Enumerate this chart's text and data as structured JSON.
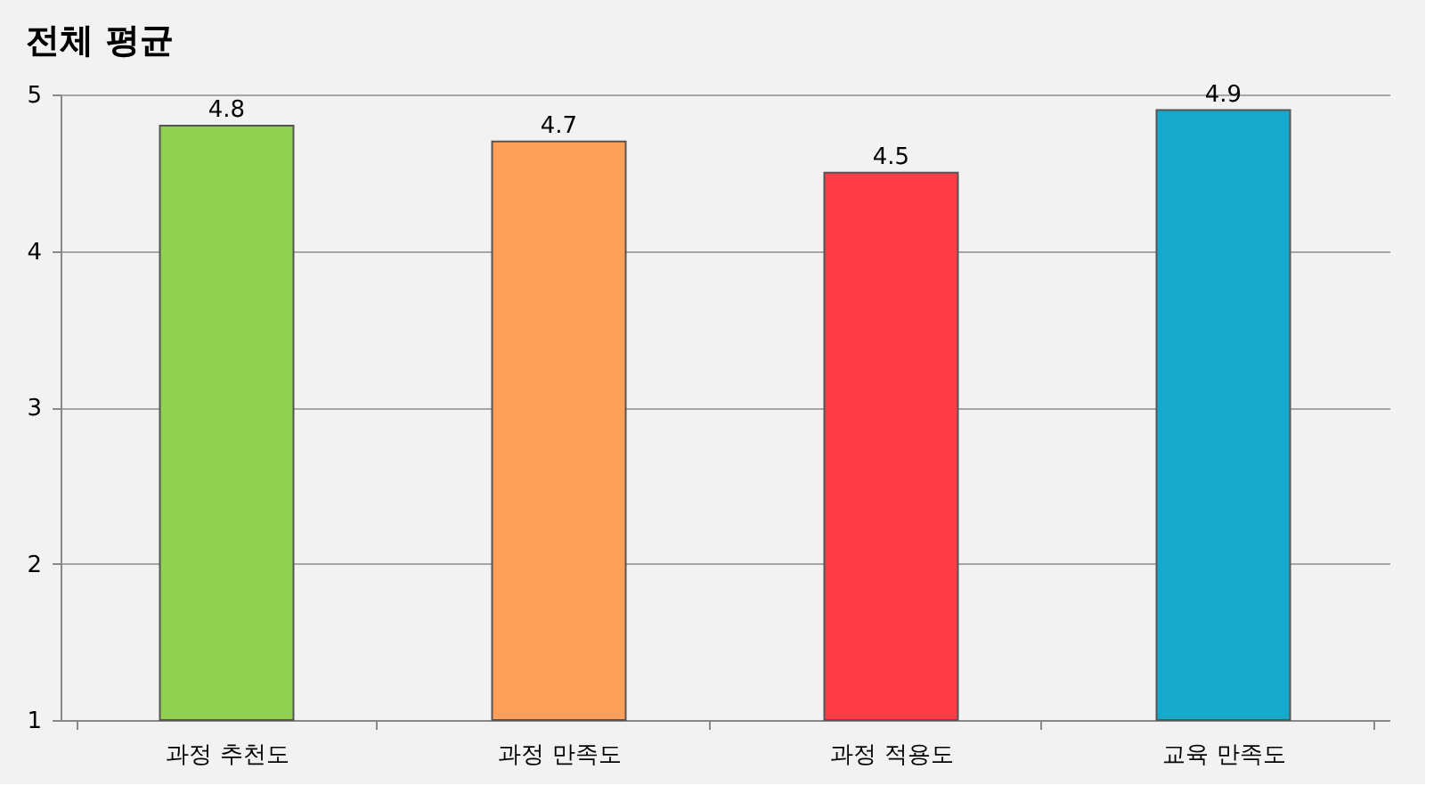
{
  "chart_data": {
    "type": "bar",
    "title": "전체 평균",
    "categories": [
      "과정 추천도",
      "과정 만족도",
      "과정 적용도",
      "교육 만족도"
    ],
    "values": [
      4.8,
      4.7,
      4.5,
      4.9
    ],
    "colors": [
      "#92d050",
      "#ffa05a",
      "#ff3b47",
      "#17a9cc"
    ],
    "ylim": [
      1,
      5
    ],
    "yticks": [
      1,
      2,
      3,
      4,
      5
    ],
    "grid": "y",
    "data_labels": true
  }
}
